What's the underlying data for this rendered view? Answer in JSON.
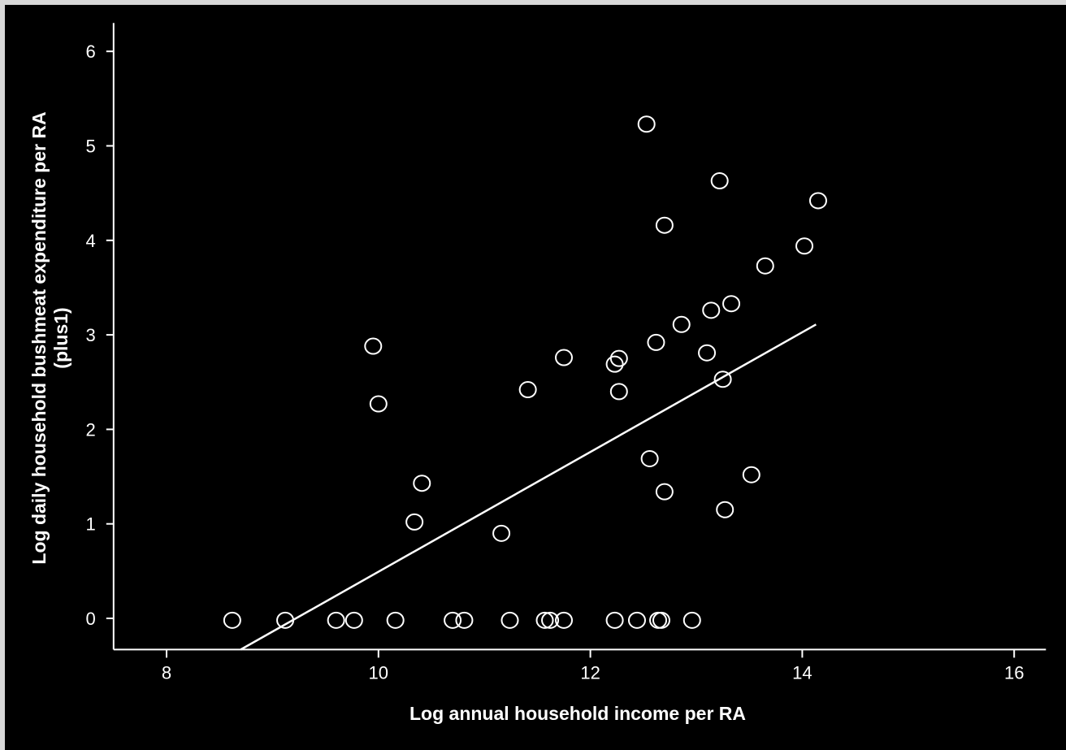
{
  "colors": {
    "background": "#000000",
    "foreground": "#ffffff",
    "border": "#d9d9d9"
  },
  "chart_data": {
    "type": "scatter",
    "title": "",
    "xlabel": "Log annual household income per RA",
    "ylabel_line1": "Log daily household bushmeat expenditure per RA",
    "ylabel_line2": "(plus1)",
    "xlim": [
      7.5,
      16.3
    ],
    "ylim": [
      -0.33,
      6.3
    ],
    "x_ticks": [
      8,
      10,
      12,
      14,
      16
    ],
    "y_ticks": [
      0,
      1,
      2,
      3,
      4,
      5,
      6
    ],
    "grid": false,
    "legend": "none",
    "points": [
      {
        "x": 8.62,
        "y": -0.02
      },
      {
        "x": 9.12,
        "y": -0.02
      },
      {
        "x": 9.6,
        "y": -0.02
      },
      {
        "x": 9.77,
        "y": -0.02
      },
      {
        "x": 10.16,
        "y": -0.02
      },
      {
        "x": 10.7,
        "y": -0.02
      },
      {
        "x": 10.81,
        "y": -0.02
      },
      {
        "x": 11.24,
        "y": -0.02
      },
      {
        "x": 11.57,
        "y": -0.02
      },
      {
        "x": 11.62,
        "y": -0.02
      },
      {
        "x": 11.75,
        "y": -0.02
      },
      {
        "x": 12.23,
        "y": -0.02
      },
      {
        "x": 12.44,
        "y": -0.02
      },
      {
        "x": 12.64,
        "y": -0.02
      },
      {
        "x": 12.67,
        "y": -0.02
      },
      {
        "x": 12.96,
        "y": -0.02
      },
      {
        "x": 9.95,
        "y": 2.88
      },
      {
        "x": 10.0,
        "y": 2.27
      },
      {
        "x": 10.34,
        "y": 1.02
      },
      {
        "x": 10.41,
        "y": 1.43
      },
      {
        "x": 11.16,
        "y": 0.9
      },
      {
        "x": 11.41,
        "y": 2.42
      },
      {
        "x": 11.75,
        "y": 2.76
      },
      {
        "x": 12.23,
        "y": 2.69
      },
      {
        "x": 12.27,
        "y": 2.75
      },
      {
        "x": 12.27,
        "y": 2.4
      },
      {
        "x": 12.53,
        "y": 5.23
      },
      {
        "x": 12.56,
        "y": 1.69
      },
      {
        "x": 12.62,
        "y": 2.92
      },
      {
        "x": 12.7,
        "y": 4.16
      },
      {
        "x": 12.7,
        "y": 1.34
      },
      {
        "x": 12.86,
        "y": 3.11
      },
      {
        "x": 13.1,
        "y": 2.81
      },
      {
        "x": 13.14,
        "y": 3.26
      },
      {
        "x": 13.22,
        "y": 4.63
      },
      {
        "x": 13.25,
        "y": 2.53
      },
      {
        "x": 13.27,
        "y": 1.15
      },
      {
        "x": 13.33,
        "y": 3.33
      },
      {
        "x": 13.52,
        "y": 1.52
      },
      {
        "x": 13.65,
        "y": 3.73
      },
      {
        "x": 14.02,
        "y": 3.94
      },
      {
        "x": 14.15,
        "y": 4.42
      }
    ],
    "fit_line": [
      {
        "x": 8.7,
        "y": -0.33
      },
      {
        "x": 14.13,
        "y": 3.11
      }
    ]
  }
}
